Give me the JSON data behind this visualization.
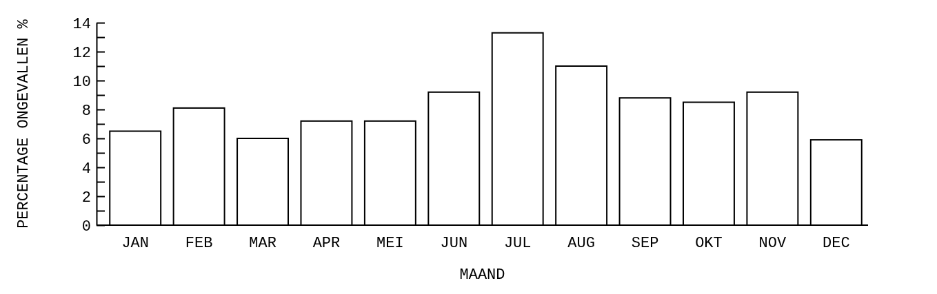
{
  "chart_data": {
    "type": "bar",
    "xlabel": "MAAND",
    "ylabel": "PERCENTAGE ONGEVALLEN %",
    "categories": [
      "JAN",
      "FEB",
      "MAR",
      "APR",
      "MEI",
      "JUN",
      "JUL",
      "AUG",
      "SEP",
      "OKT",
      "NOV",
      "DEC"
    ],
    "values": [
      6.5,
      8.1,
      6.0,
      7.2,
      7.2,
      9.2,
      13.3,
      11.0,
      8.8,
      8.5,
      9.2,
      5.9
    ],
    "color": "#ffffff",
    "ylim": [
      0,
      14
    ],
    "yticks": [
      0,
      {
        "value": 1,
        "label": null
      },
      2,
      {
        "value": 3,
        "label": null
      },
      4,
      {
        "value": 5,
        "label": null
      },
      6,
      {
        "value": 7,
        "label": null
      },
      8,
      {
        "value": 9,
        "label": null
      },
      10,
      {
        "value": 11,
        "label": null
      },
      12,
      {
        "value": 13,
        "label": null
      },
      14
    ],
    "grid": false
  }
}
